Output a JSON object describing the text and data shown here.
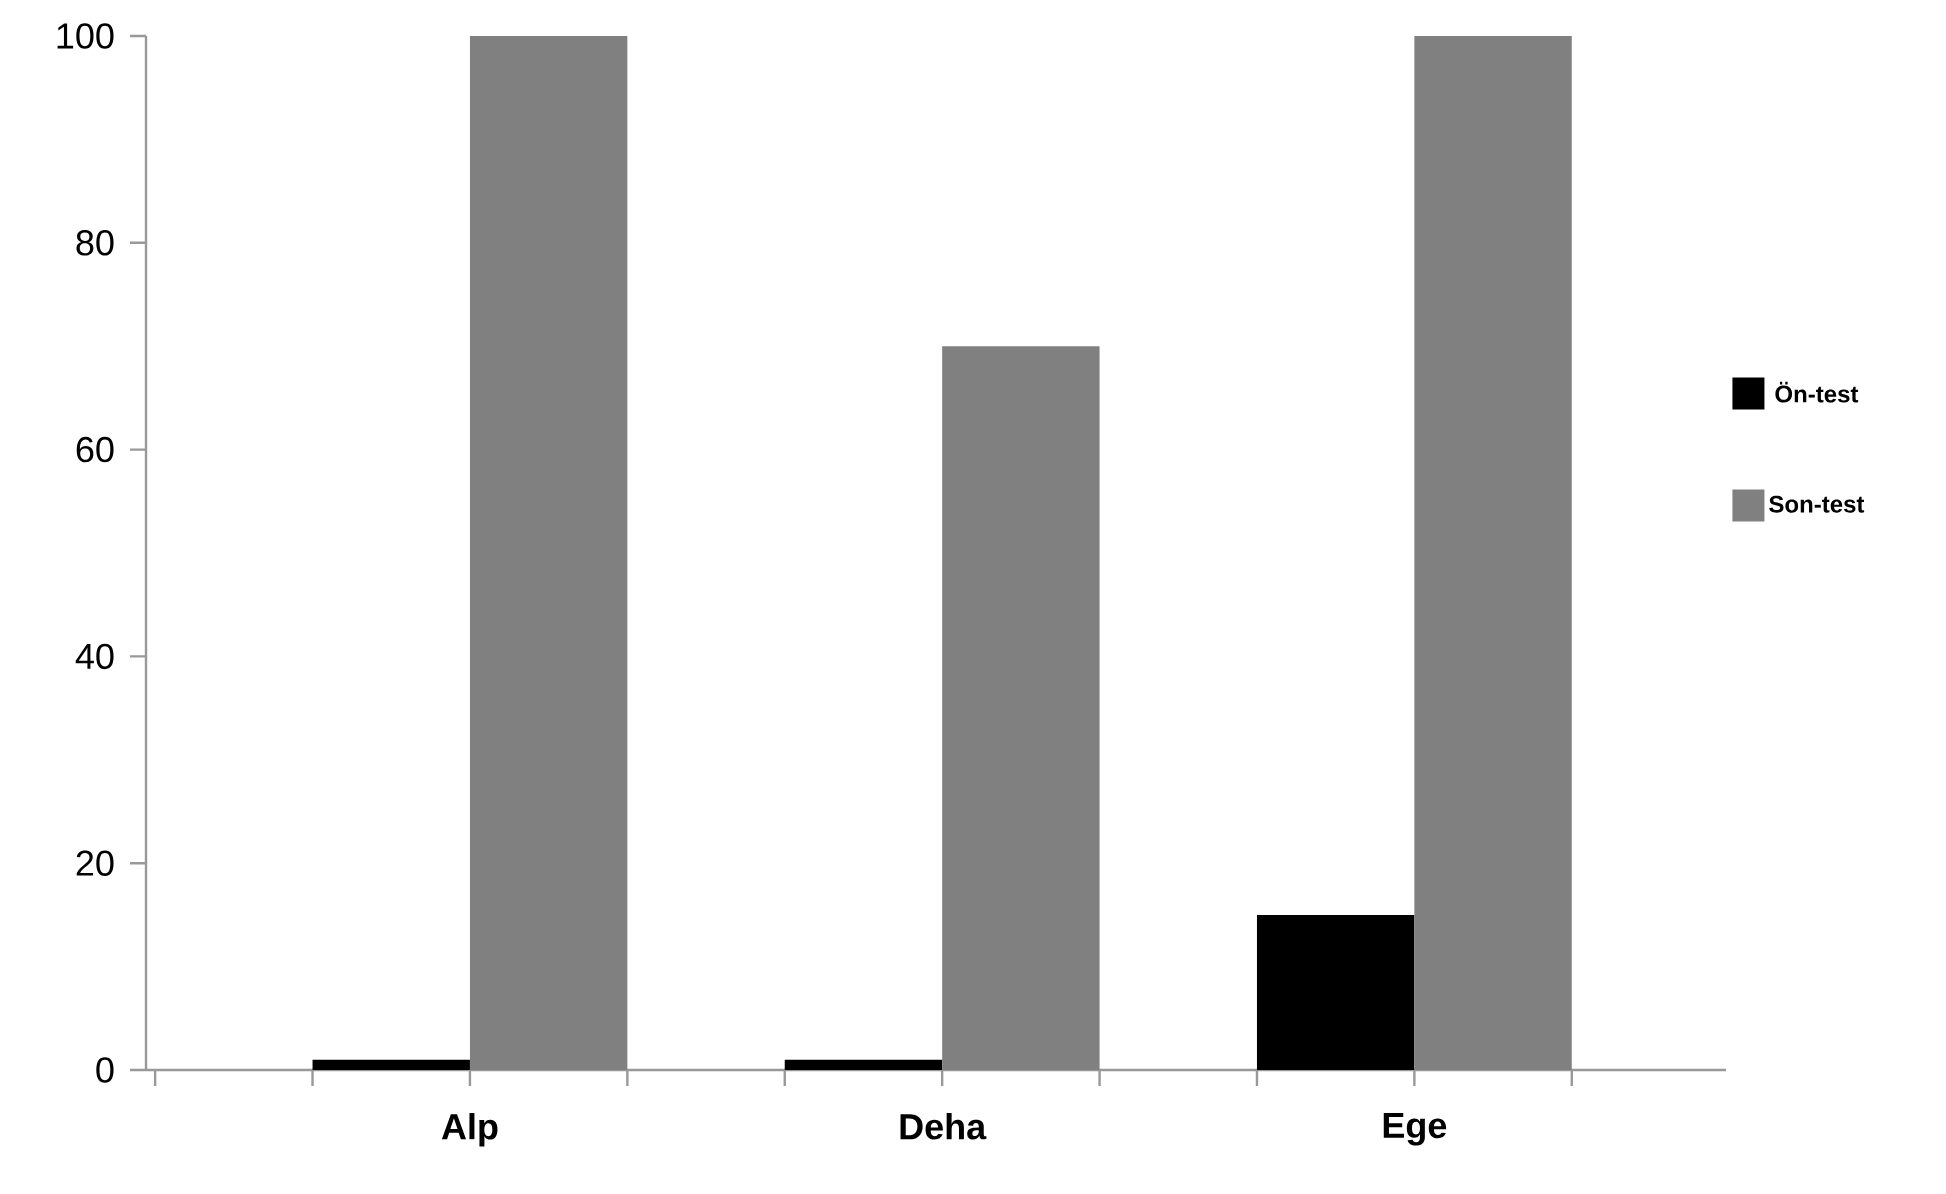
{
  "chart_data": {
    "type": "bar",
    "categories": [
      "Alp",
      "Deha",
      "Ege"
    ],
    "series": [
      {
        "name": "Ön-test",
        "color": "#000000",
        "values": [
          1,
          1,
          15
        ]
      },
      {
        "name": "Son-test",
        "color": "#808080",
        "values": [
          100,
          70,
          100
        ]
      }
    ],
    "ylim": [
      0,
      100
    ],
    "yticks": [
      0,
      20,
      40,
      60,
      80,
      100
    ],
    "grid": false,
    "legend": "right"
  }
}
